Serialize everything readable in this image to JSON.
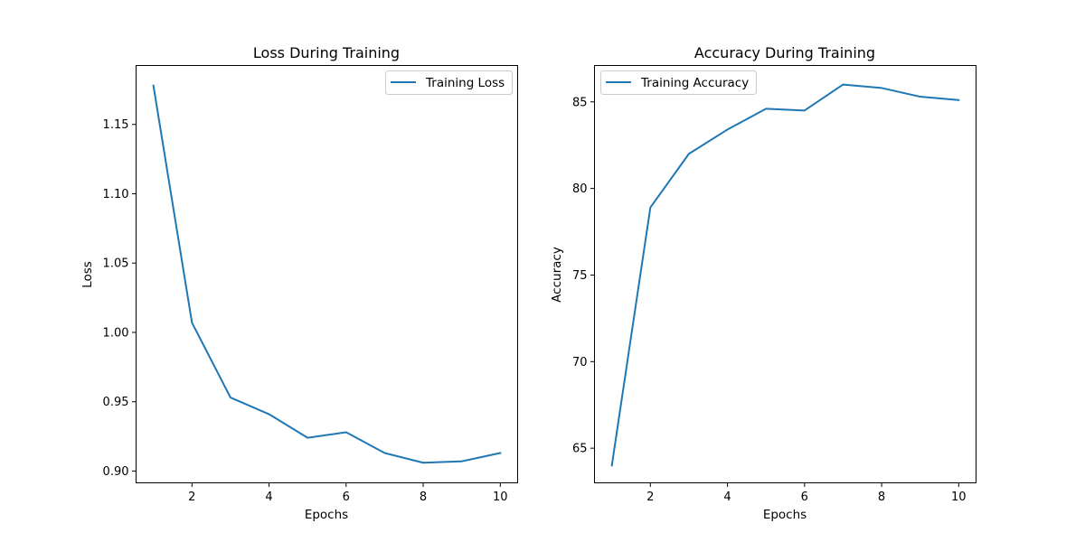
{
  "chart_data": [
    {
      "type": "line",
      "title": "Loss During Training",
      "xlabel": "Epochs",
      "ylabel": "Loss",
      "x": [
        1,
        2,
        3,
        4,
        5,
        6,
        7,
        8,
        9,
        10
      ],
      "xlim": [
        0.55,
        10.45
      ],
      "ylim": [
        0.8915,
        1.1925
      ],
      "xticks": [
        2,
        4,
        6,
        8,
        10
      ],
      "yticks": [
        0.9,
        0.95,
        1.0,
        1.05,
        1.1,
        1.15
      ],
      "ytick_labels": [
        "0.90",
        "0.95",
        "1.00",
        "1.05",
        "1.10",
        "1.15"
      ],
      "series": [
        {
          "name": "Training Loss",
          "color": "#1f77b4",
          "values": [
            1.178,
            1.007,
            0.953,
            0.941,
            0.924,
            0.928,
            0.913,
            0.906,
            0.907,
            0.913
          ]
        }
      ],
      "legend": "upper right",
      "grid": false
    },
    {
      "type": "line",
      "title": "Accuracy During Training",
      "xlabel": "Epochs",
      "ylabel": "Accuracy",
      "x": [
        1,
        2,
        3,
        4,
        5,
        6,
        7,
        8,
        9,
        10
      ],
      "xlim": [
        0.55,
        10.45
      ],
      "ylim": [
        63.0,
        87.1
      ],
      "xticks": [
        2,
        4,
        6,
        8,
        10
      ],
      "yticks": [
        65,
        70,
        75,
        80,
        85
      ],
      "ytick_labels": [
        "65",
        "70",
        "75",
        "80",
        "85"
      ],
      "series": [
        {
          "name": "Training Accuracy",
          "color": "#1f77b4",
          "values": [
            64.0,
            78.9,
            82.0,
            83.4,
            84.6,
            84.5,
            86.0,
            85.8,
            85.3,
            85.1
          ]
        }
      ],
      "legend": "upper left",
      "grid": false
    }
  ]
}
